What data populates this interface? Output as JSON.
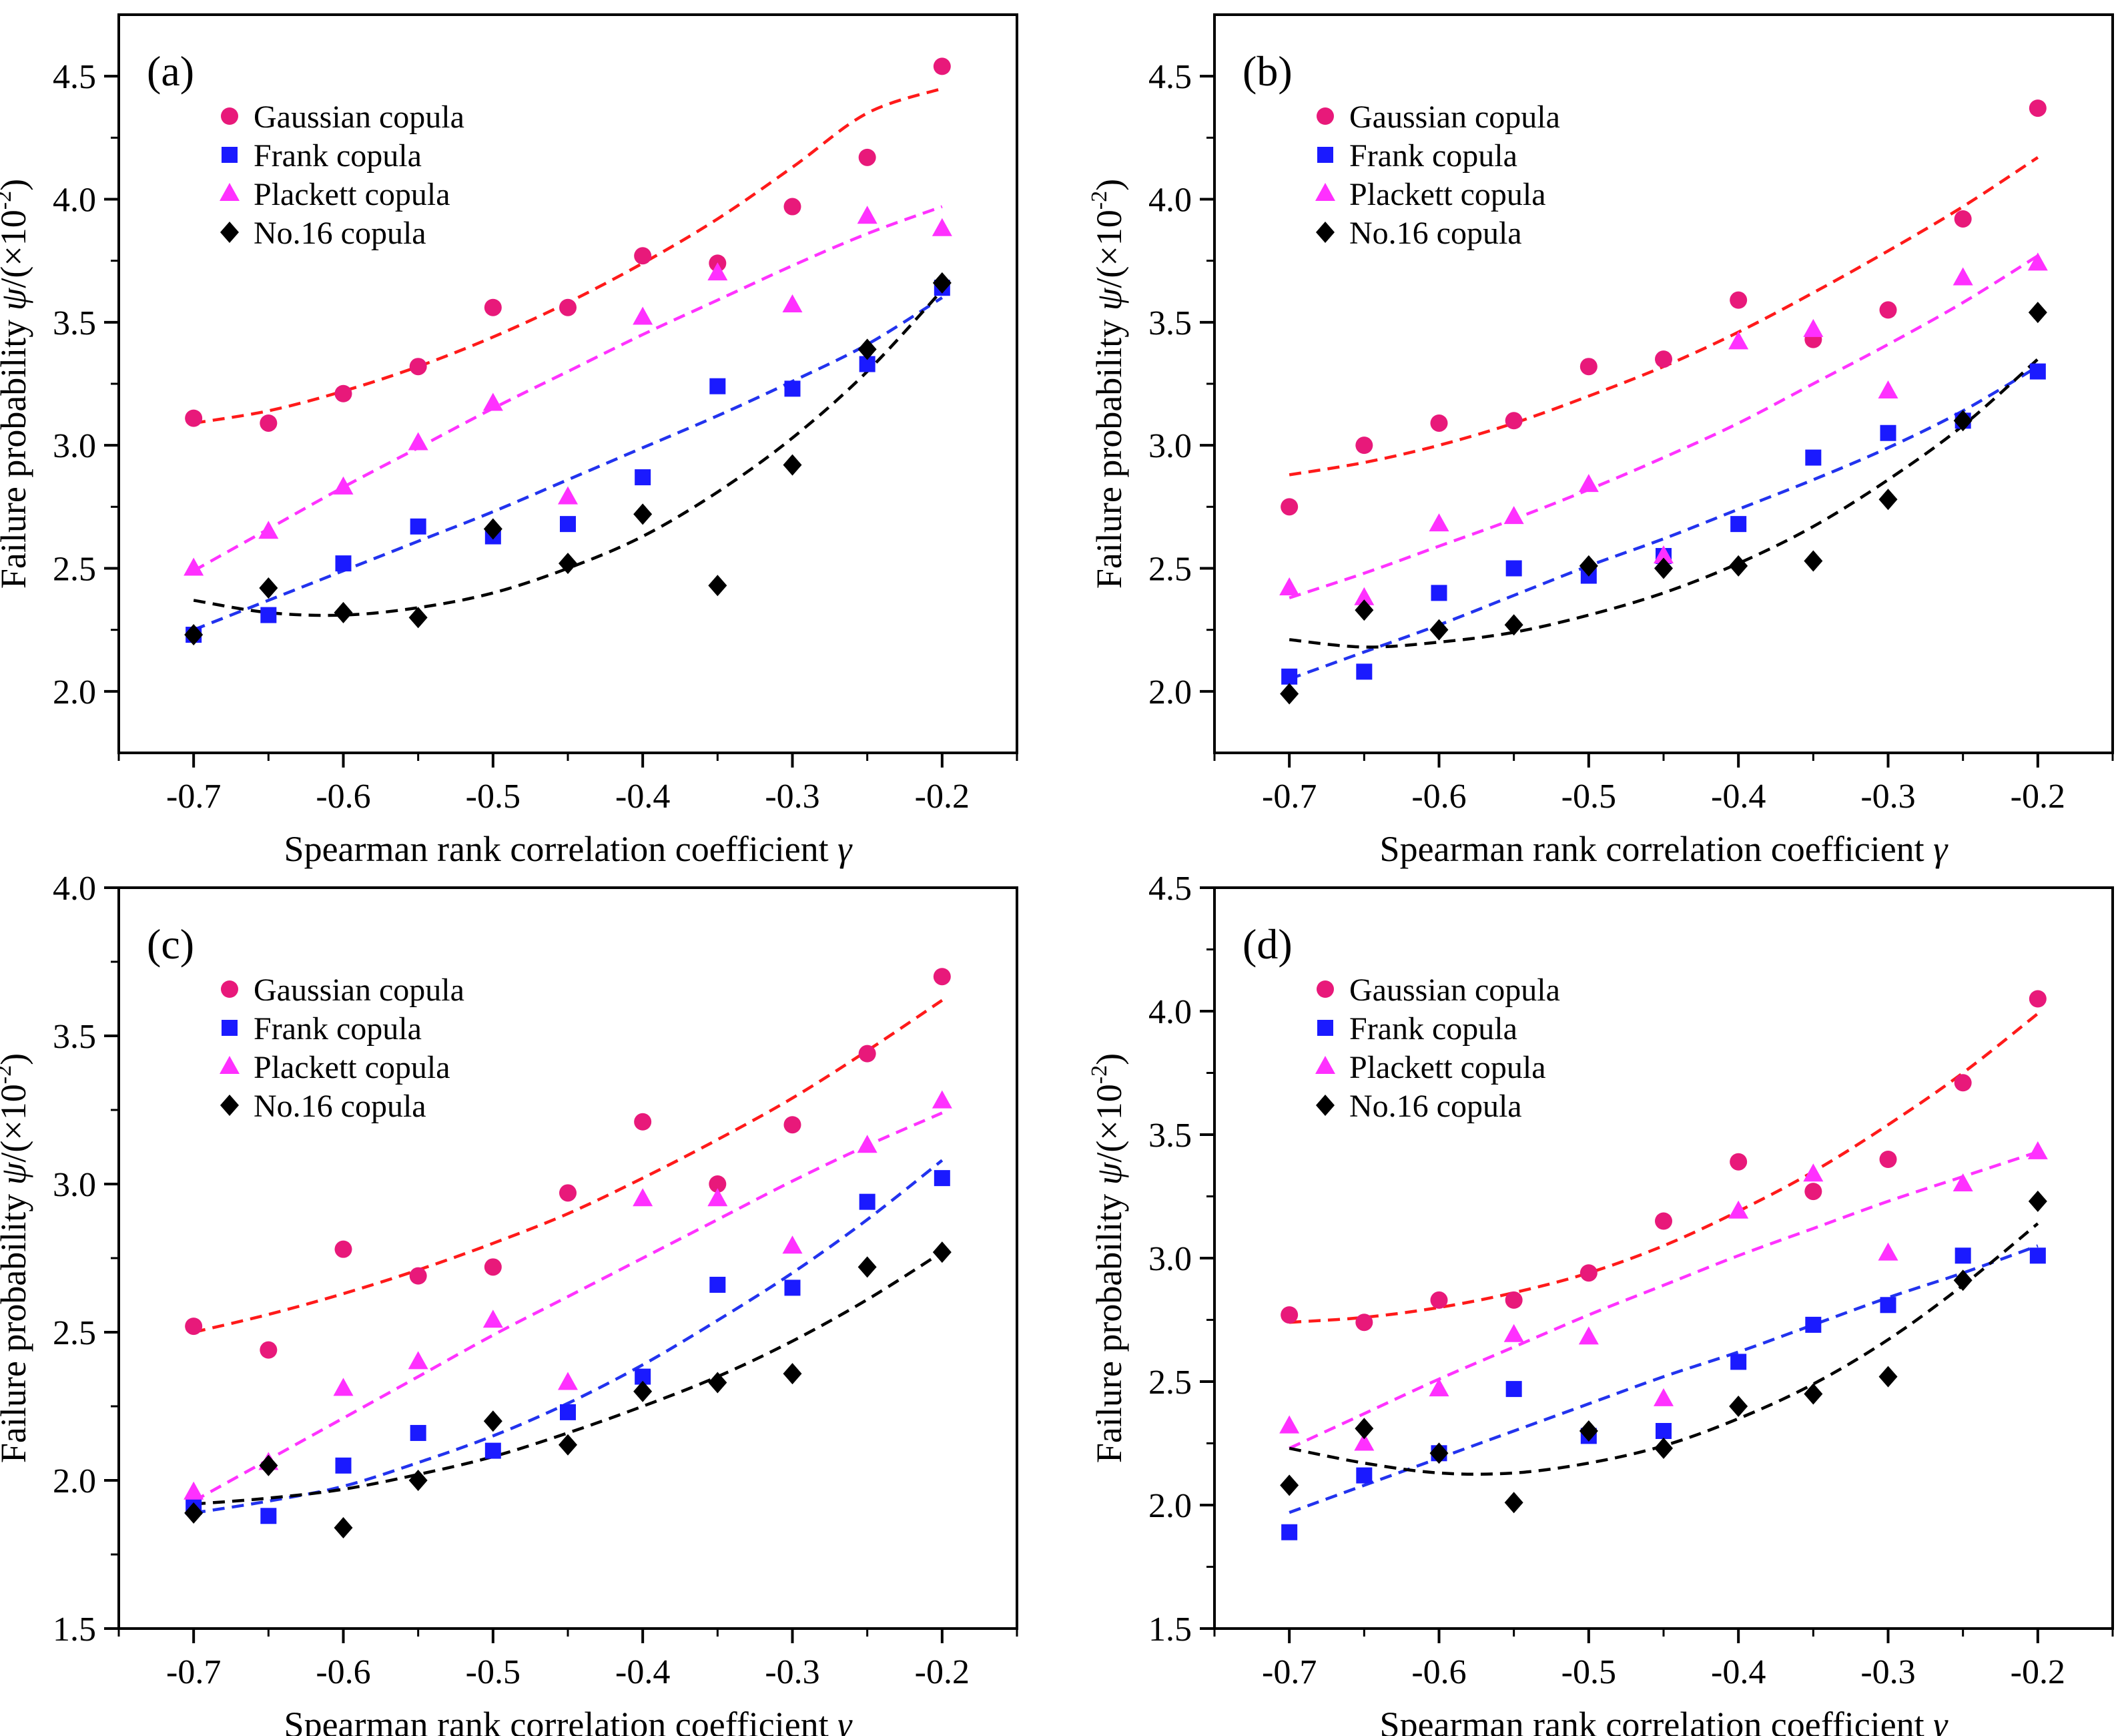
{
  "colors": {
    "gaussian": "#e8197a",
    "frank": "#1a1aff",
    "plackett": "#ff30ff",
    "no16": "#000000",
    "fit_gaussian": "#ff1a1a",
    "fit_frank": "#2233ee",
    "fit_plackett": "#ff33ff",
    "fit_no16": "#000000"
  },
  "legend_labels": [
    "Gaussian copula",
    "Frank copula",
    "Plackett copula",
    "No.16 copula"
  ],
  "chart_data": [
    {
      "type": "scatter",
      "panel_label": "(a)",
      "title": "",
      "xlabel_text": "Spearman rank correlation coefficient",
      "xlabel_symbol": "γ",
      "ylabel_text": "Failure probability",
      "ylabel_symbol": "ψ",
      "ylabel_unit": "/(×10",
      "ylabel_exp": "-2",
      "ylabel_close": ")",
      "xlim": [
        -0.75,
        -0.15
      ],
      "ylim": [
        1.75,
        4.75
      ],
      "xticks": [
        -0.7,
        -0.6,
        -0.5,
        -0.4,
        -0.3,
        -0.2
      ],
      "xtick_labels": [
        "-0.7",
        "-0.6",
        "-0.5",
        "-0.4",
        "-0.3",
        "-0.2"
      ],
      "yticks": [
        2.0,
        2.5,
        3.0,
        3.5,
        4.0,
        4.5
      ],
      "ytick_labels": [
        "2.0",
        "2.5",
        "3.0",
        "3.5",
        "4.0",
        "4.5"
      ],
      "x": [
        -0.7,
        -0.65,
        -0.6,
        -0.55,
        -0.5,
        -0.45,
        -0.4,
        -0.35,
        -0.3,
        -0.25,
        -0.2
      ],
      "series": [
        {
          "name": "Gaussian copula",
          "marker": "circle",
          "values": [
            3.11,
            3.09,
            3.21,
            3.32,
            3.56,
            3.56,
            3.77,
            3.74,
            3.97,
            4.17,
            4.54
          ],
          "fit": [
            3.09,
            3.14,
            3.22,
            3.32,
            3.44,
            3.58,
            3.74,
            3.92,
            4.13,
            4.35,
            4.45
          ]
        },
        {
          "name": "Frank copula",
          "marker": "square",
          "values": [
            2.23,
            2.31,
            2.52,
            2.67,
            2.63,
            2.68,
            2.87,
            3.24,
            3.23,
            3.33,
            3.64
          ],
          "fit": [
            2.25,
            2.37,
            2.49,
            2.61,
            2.73,
            2.86,
            2.99,
            3.12,
            3.26,
            3.41,
            3.6
          ]
        },
        {
          "name": "Plackett copula",
          "marker": "triangle",
          "values": [
            2.5,
            2.65,
            2.83,
            3.01,
            3.17,
            2.79,
            3.52,
            3.7,
            3.57,
            3.93,
            3.88
          ],
          "fit": [
            2.49,
            2.66,
            2.83,
            2.99,
            3.15,
            3.3,
            3.45,
            3.59,
            3.73,
            3.86,
            3.97
          ]
        },
        {
          "name": "No.16 copula",
          "marker": "diamond",
          "values": [
            2.23,
            2.42,
            2.32,
            2.3,
            2.66,
            2.52,
            2.72,
            2.43,
            2.92,
            3.39,
            3.66
          ],
          "fit": [
            2.37,
            2.32,
            2.31,
            2.34,
            2.4,
            2.5,
            2.63,
            2.81,
            3.03,
            3.3,
            3.63
          ]
        }
      ]
    },
    {
      "type": "scatter",
      "panel_label": "(b)",
      "title": "",
      "xlabel_text": "Spearman rank correlation coefficient",
      "xlabel_symbol": "γ",
      "ylabel_text": "Failure probability",
      "ylabel_symbol": "ψ",
      "ylabel_unit": "/(×10",
      "ylabel_exp": "-2",
      "ylabel_close": ")",
      "xlim": [
        -0.75,
        -0.15
      ],
      "ylim": [
        1.75,
        4.75
      ],
      "xticks": [
        -0.7,
        -0.6,
        -0.5,
        -0.4,
        -0.3,
        -0.2
      ],
      "xtick_labels": [
        "-0.7",
        "-0.6",
        "-0.5",
        "-0.4",
        "-0.3",
        "-0.2"
      ],
      "yticks": [
        2.0,
        2.5,
        3.0,
        3.5,
        4.0,
        4.5
      ],
      "ytick_labels": [
        "2.0",
        "2.5",
        "3.0",
        "3.5",
        "4.0",
        "4.5"
      ],
      "x": [
        -0.7,
        -0.65,
        -0.6,
        -0.55,
        -0.5,
        -0.45,
        -0.4,
        -0.35,
        -0.3,
        -0.25,
        -0.2
      ],
      "series": [
        {
          "name": "Gaussian copula",
          "marker": "circle",
          "values": [
            2.75,
            3.0,
            3.09,
            3.1,
            3.32,
            3.35,
            3.59,
            3.43,
            3.55,
            3.92,
            4.37
          ],
          "fit": [
            2.88,
            2.93,
            3.0,
            3.09,
            3.2,
            3.32,
            3.46,
            3.62,
            3.79,
            3.97,
            4.17
          ]
        },
        {
          "name": "Frank copula",
          "marker": "square",
          "values": [
            2.06,
            2.08,
            2.4,
            2.5,
            2.47,
            2.55,
            2.68,
            2.95,
            3.05,
            3.1,
            3.3
          ],
          "fit": [
            2.05,
            2.16,
            2.27,
            2.39,
            2.51,
            2.62,
            2.74,
            2.86,
            2.99,
            3.14,
            3.32
          ]
        },
        {
          "name": "Plackett copula",
          "marker": "triangle",
          "values": [
            2.42,
            2.38,
            2.68,
            2.71,
            2.84,
            2.55,
            3.42,
            3.47,
            3.22,
            3.68,
            3.74
          ],
          "fit": [
            2.38,
            2.48,
            2.59,
            2.7,
            2.82,
            2.95,
            3.09,
            3.25,
            3.41,
            3.58,
            3.77
          ]
        },
        {
          "name": "No.16 copula",
          "marker": "diamond",
          "values": [
            1.99,
            2.33,
            2.25,
            2.27,
            2.51,
            2.5,
            2.51,
            2.53,
            2.78,
            3.1,
            3.54
          ],
          "fit": [
            2.21,
            2.18,
            2.2,
            2.24,
            2.31,
            2.4,
            2.52,
            2.67,
            2.86,
            3.08,
            3.35
          ]
        }
      ]
    },
    {
      "type": "scatter",
      "panel_label": "(c)",
      "title": "",
      "xlabel_text": "Spearman rank correlation coefficient",
      "xlabel_symbol": "γ",
      "ylabel_text": "Failure probability",
      "ylabel_symbol": "ψ",
      "ylabel_unit": "/(×10",
      "ylabel_exp": "-2",
      "ylabel_close": ")",
      "xlim": [
        -0.75,
        -0.15
      ],
      "ylim": [
        1.5,
        4.0
      ],
      "xticks": [
        -0.7,
        -0.6,
        -0.5,
        -0.4,
        -0.3,
        -0.2
      ],
      "xtick_labels": [
        "-0.7",
        "-0.6",
        "-0.5",
        "-0.4",
        "-0.3",
        "-0.2"
      ],
      "yticks": [
        1.5,
        2.0,
        2.5,
        3.0,
        3.5,
        4.0
      ],
      "ytick_labels": [
        "1.5",
        "2.0",
        "2.5",
        "3.0",
        "3.5",
        "4.0"
      ],
      "x": [
        -0.7,
        -0.65,
        -0.6,
        -0.55,
        -0.5,
        -0.45,
        -0.4,
        -0.35,
        -0.3,
        -0.25,
        -0.2
      ],
      "series": [
        {
          "name": "Gaussian copula",
          "marker": "circle",
          "values": [
            2.52,
            2.44,
            2.78,
            2.69,
            2.72,
            2.97,
            3.21,
            3.0,
            3.2,
            3.44,
            3.7
          ],
          "fit": [
            2.5,
            2.56,
            2.63,
            2.71,
            2.8,
            2.9,
            3.02,
            3.15,
            3.29,
            3.45,
            3.62
          ]
        },
        {
          "name": "Frank copula",
          "marker": "square",
          "values": [
            1.91,
            1.88,
            2.05,
            2.16,
            2.1,
            2.23,
            2.35,
            2.66,
            2.65,
            2.94,
            3.02
          ],
          "fit": [
            1.89,
            1.93,
            1.98,
            2.06,
            2.15,
            2.26,
            2.39,
            2.54,
            2.7,
            2.88,
            3.08
          ]
        },
        {
          "name": "Plackett copula",
          "marker": "triangle",
          "values": [
            1.96,
            2.06,
            2.31,
            2.4,
            2.54,
            2.33,
            2.95,
            2.95,
            2.79,
            3.13,
            3.28
          ],
          "fit": [
            1.93,
            2.07,
            2.21,
            2.35,
            2.49,
            2.62,
            2.75,
            2.88,
            3.01,
            3.13,
            3.24
          ]
        },
        {
          "name": "No.16 copula",
          "marker": "diamond",
          "values": [
            1.89,
            2.05,
            1.84,
            2.0,
            2.2,
            2.12,
            2.3,
            2.33,
            2.36,
            2.72,
            2.77
          ],
          "fit": [
            1.92,
            1.94,
            1.97,
            2.02,
            2.08,
            2.16,
            2.25,
            2.35,
            2.47,
            2.61,
            2.77
          ]
        }
      ]
    },
    {
      "type": "scatter",
      "panel_label": "(d)",
      "title": "",
      "xlabel_text": "Spearman rank correlation coefficient",
      "xlabel_symbol": "γ",
      "ylabel_text": "Failure probability",
      "ylabel_symbol": "ψ",
      "ylabel_unit": "/(×10",
      "ylabel_exp": "-2",
      "ylabel_close": ")",
      "xlim": [
        -0.75,
        -0.15
      ],
      "ylim": [
        1.5,
        4.5
      ],
      "xticks": [
        -0.7,
        -0.6,
        -0.5,
        -0.4,
        -0.3,
        -0.2
      ],
      "xtick_labels": [
        "-0.7",
        "-0.6",
        "-0.5",
        "-0.4",
        "-0.3",
        "-0.2"
      ],
      "yticks": [
        1.5,
        2.0,
        2.5,
        3.0,
        3.5,
        4.0,
        4.5
      ],
      "ytick_labels": [
        "1.5",
        "2.0",
        "2.5",
        "3.0",
        "3.5",
        "4.0",
        "4.5"
      ],
      "x": [
        -0.7,
        -0.65,
        -0.6,
        -0.55,
        -0.5,
        -0.45,
        -0.4,
        -0.35,
        -0.3,
        -0.25,
        -0.2
      ],
      "series": [
        {
          "name": "Gaussian copula",
          "marker": "circle",
          "values": [
            2.77,
            2.74,
            2.83,
            2.83,
            2.94,
            3.15,
            3.39,
            3.27,
            3.4,
            3.71,
            4.05
          ],
          "fit": [
            2.74,
            2.76,
            2.8,
            2.86,
            2.94,
            3.05,
            3.19,
            3.35,
            3.54,
            3.75,
            3.99
          ]
        },
        {
          "name": "Frank copula",
          "marker": "square",
          "values": [
            1.89,
            2.12,
            2.21,
            2.47,
            2.28,
            2.3,
            2.58,
            2.73,
            2.81,
            3.01,
            3.01
          ],
          "fit": [
            1.97,
            2.08,
            2.19,
            2.3,
            2.41,
            2.52,
            2.62,
            2.73,
            2.84,
            2.94,
            3.05
          ]
        },
        {
          "name": "Plackett copula",
          "marker": "triangle",
          "values": [
            2.32,
            2.25,
            2.47,
            2.69,
            2.68,
            2.43,
            3.19,
            3.34,
            3.02,
            3.3,
            3.43
          ],
          "fit": [
            2.23,
            2.37,
            2.51,
            2.64,
            2.77,
            2.89,
            3.01,
            3.12,
            3.23,
            3.33,
            3.43
          ]
        },
        {
          "name": "No.16 copula",
          "marker": "diamond",
          "values": [
            2.08,
            2.31,
            2.21,
            2.01,
            2.3,
            2.23,
            2.4,
            2.45,
            2.52,
            2.91,
            3.23
          ],
          "fit": [
            2.23,
            2.17,
            2.13,
            2.13,
            2.17,
            2.24,
            2.35,
            2.49,
            2.67,
            2.89,
            3.14
          ]
        }
      ]
    }
  ]
}
